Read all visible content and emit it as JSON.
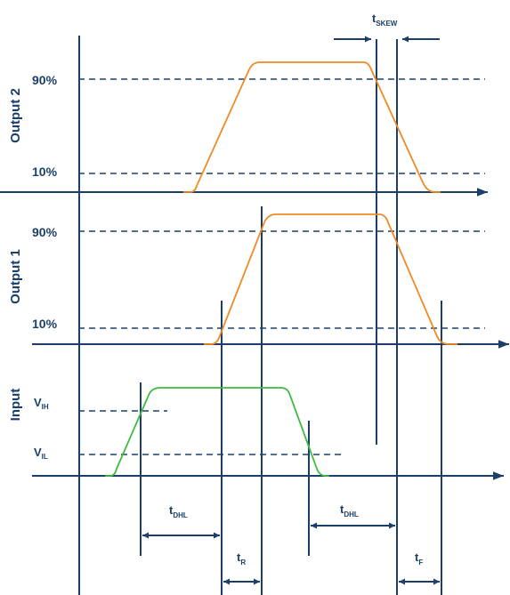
{
  "signals": {
    "output2": "Output 2",
    "output1": "Output 1",
    "input": "Input"
  },
  "levels": {
    "out2_high": "90%",
    "out2_low": "10%",
    "out1_high": "90%",
    "out1_low": "10%",
    "vih_main": "V",
    "vih_sub": "IH",
    "vil_main": "V",
    "vil_sub": "IL"
  },
  "timing": {
    "tskew_main": "t",
    "tskew_sub": "SKEW",
    "tdhl1_main": "t",
    "tdhl1_sub": "DHL",
    "tdhl2_main": "t",
    "tdhl2_sub": "DHL",
    "tr_main": "t",
    "tr_sub": "R",
    "tf_main": "t",
    "tf_sub": "F"
  },
  "colors": {
    "axis": "#1b3f68",
    "output": "#f08a24",
    "input": "#3dbb3d"
  }
}
